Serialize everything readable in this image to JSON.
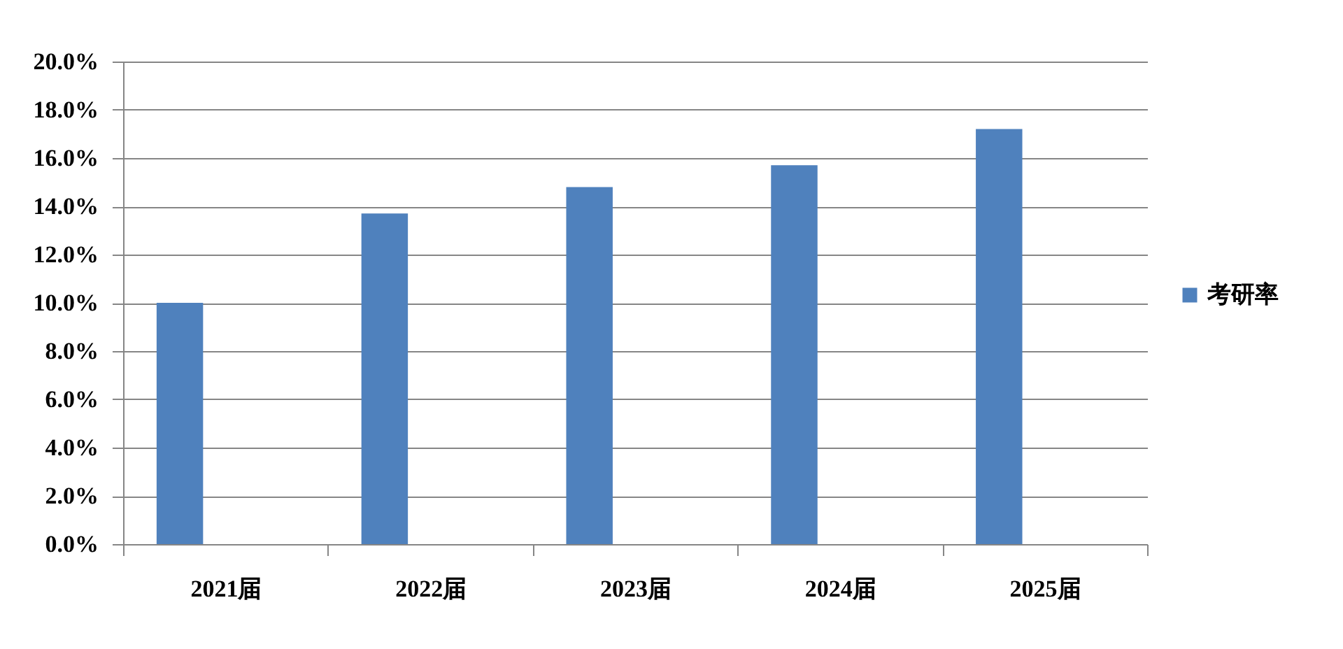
{
  "chart_data": {
    "type": "bar",
    "categories": [
      "2021届",
      "2022届",
      "2023届",
      "2024届",
      "2025届"
    ],
    "series": [
      {
        "name": "考研率",
        "color": "#4f81bd",
        "values": [
          10.0,
          13.7,
          14.8,
          15.7,
          17.2
        ]
      }
    ],
    "ylim": [
      0,
      20
    ],
    "yticks": [
      {
        "value": 0,
        "label": "0.0%"
      },
      {
        "value": 2,
        "label": "2.0%"
      },
      {
        "value": 4,
        "label": "4.0%"
      },
      {
        "value": 6,
        "label": "6.0%"
      },
      {
        "value": 8,
        "label": "8.0%"
      },
      {
        "value": 10,
        "label": "10.0%"
      },
      {
        "value": 12,
        "label": "12.0%"
      },
      {
        "value": 14,
        "label": "14.0%"
      },
      {
        "value": 16,
        "label": "16.0%"
      },
      {
        "value": 18,
        "label": "18.0%"
      },
      {
        "value": 20,
        "label": "20.0%"
      }
    ],
    "grid": "y",
    "legend": "right"
  }
}
